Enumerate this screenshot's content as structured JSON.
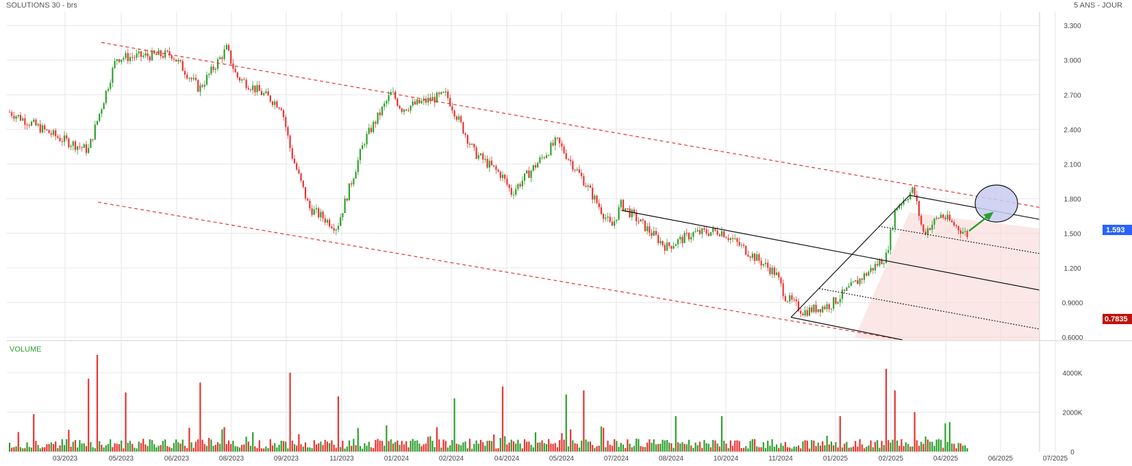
{
  "header": {
    "title": "SOLUTIONS 30 - brs",
    "period": "5 ANS - JOUR"
  },
  "volume_label": "VOLUME",
  "price_axis": {
    "ticks": [
      "3.300",
      "3.000",
      "2.700",
      "2.400",
      "2.100",
      "1.800",
      "1.500",
      "1.200",
      "0.9000",
      "0.6000"
    ]
  },
  "volume_axis": {
    "ticks": [
      "4000K",
      "2000K",
      "0"
    ]
  },
  "badges": {
    "last_price": {
      "label": "1.593",
      "color": "#2962ff"
    },
    "low_price": {
      "label": "0.7835",
      "color": "#c0140c"
    }
  },
  "chart_data": [
    {
      "type": "line",
      "title": "SOLUTIONS 30 - brs",
      "subtitle": "5 ANS - JOUR",
      "x_tick_labels": [
        "03/2023",
        "05/2023",
        "06/2023",
        "08/2023",
        "09/2023",
        "11/2023",
        "01/2024",
        "02/2024",
        "04/2024",
        "05/2024",
        "07/2024",
        "08/2024",
        "10/2024",
        "11/2024",
        "01/2025",
        "02/2025",
        "04/2025",
        "06/2025",
        "07/2025"
      ],
      "ylim": [
        0.57,
        3.42
      ],
      "grid": true,
      "series": [
        {
          "values": [
            {
              "x": "02/2023",
              "y": 2.55
            },
            {
              "x": "03/2023",
              "y": 2.32
            },
            {
              "x": "04/2023",
              "y": 2.22
            },
            {
              "x": "05/2023",
              "y": 3.02
            },
            {
              "x": "06/2023",
              "y": 3.05
            },
            {
              "x": "07/2023",
              "y": 2.75
            },
            {
              "x": "08/2023",
              "y": 3.1
            },
            {
              "x": "08/2023",
              "y": 2.86
            },
            {
              "x": "09/2023",
              "y": 2.6
            },
            {
              "x": "09/2023",
              "y": 2.2
            },
            {
              "x": "10/2023",
              "y": 1.72
            },
            {
              "x": "11/2023",
              "y": 1.55
            },
            {
              "x": "12/2023",
              "y": 2.3
            },
            {
              "x": "01/2024",
              "y": 2.72
            },
            {
              "x": "01/2024",
              "y": 2.58
            },
            {
              "x": "02/2024",
              "y": 2.7
            },
            {
              "x": "03/2024",
              "y": 2.2
            },
            {
              "x": "04/2024",
              "y": 2.0
            },
            {
              "x": "04/2024",
              "y": 1.85
            },
            {
              "x": "05/2024",
              "y": 2.3
            },
            {
              "x": "06/2024",
              "y": 1.95
            },
            {
              "x": "07/2024",
              "y": 1.55
            },
            {
              "x": "07/2024",
              "y": 1.75
            },
            {
              "x": "08/2024",
              "y": 1.38
            },
            {
              "x": "09/2024",
              "y": 1.5
            },
            {
              "x": "10/2024",
              "y": 1.52
            },
            {
              "x": "11/2024",
              "y": 1.15
            },
            {
              "x": "11/2024",
              "y": 0.95
            },
            {
              "x": "12/2024",
              "y": 0.82
            },
            {
              "x": "01/2025",
              "y": 0.88
            },
            {
              "x": "02/2025",
              "y": 1.3
            },
            {
              "x": "02/2025",
              "y": 1.72
            },
            {
              "x": "03/2025",
              "y": 1.88
            },
            {
              "x": "03/2025",
              "y": 1.5
            },
            {
              "x": "04/2025",
              "y": 1.66
            },
            {
              "x": "05/2025",
              "y": 1.48
            },
            {
              "x": "05/2025",
              "y": 1.593
            }
          ]
        }
      ],
      "volume_series": {
        "name": "VOLUME",
        "values": [
          {
            "x": "02/2023",
            "y": 1900
          },
          {
            "x": "04/2023",
            "y": 4900
          },
          {
            "x": "04/2023",
            "y": 3700
          },
          {
            "x": "05/2023",
            "y": 3000
          },
          {
            "x": "07/2023",
            "y": 3500
          },
          {
            "x": "09/2023",
            "y": 4000
          },
          {
            "x": "11/2023",
            "y": 2800
          },
          {
            "x": "02/2024",
            "y": 2700
          },
          {
            "x": "04/2024",
            "y": 3300
          },
          {
            "x": "05/2024",
            "y": 2900
          },
          {
            "x": "06/2024",
            "y": 3100
          },
          {
            "x": "08/2024",
            "y": 1800
          },
          {
            "x": "10/2024",
            "y": 1800
          },
          {
            "x": "01/2025",
            "y": 1800
          },
          {
            "x": "02/2025",
            "y": 4200
          },
          {
            "x": "02/2025",
            "y": 3100
          },
          {
            "x": "03/2025",
            "y": 2000
          },
          {
            "x": "04/2025",
            "y": 1500
          },
          {
            "x": "05/2025",
            "y": 600
          }
        ]
      },
      "trendlines": [
        {
          "style": "red-dashed",
          "from": {
            "x": "04/2023",
            "y": 3.28
          },
          "to": {
            "x": "07/2025",
            "y": 1.78
          }
        },
        {
          "style": "red-dashed",
          "from": {
            "x": "04/2023",
            "y": 1.85
          },
          "to": {
            "x": "02/2025",
            "y": 0.57
          }
        },
        {
          "style": "black",
          "from": {
            "x": "07/2024",
            "y": 1.78
          },
          "to": {
            "x": "07/2025",
            "y": 0.9
          }
        },
        {
          "style": "black",
          "from": {
            "x": "03/2025",
            "y": 1.92
          },
          "to": {
            "x": "07/2025",
            "y": 1.52
          }
        },
        {
          "style": "black",
          "from": {
            "x": "12/2024",
            "y": 0.78
          },
          "to": {
            "x": "03/2025",
            "y": 1.92
          }
        }
      ],
      "colors": {
        "up": "#2ca02c",
        "down": "#e8322f",
        "trend": "#e8322f",
        "channel_fill": "#f9d9d6",
        "target_ellipse": "#c8cbee",
        "arrow": "#2ca02c"
      }
    }
  ]
}
